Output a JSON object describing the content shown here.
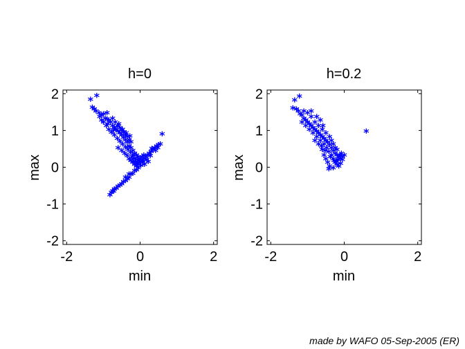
{
  "credit": "made by WAFO 05-Sep-2005 (ER)",
  "marker_color": "#0000ff",
  "chart_data": [
    {
      "type": "scatter",
      "title": "h=0",
      "xlabel": "min",
      "ylabel": "max",
      "xlim": [
        -2.1,
        2.1
      ],
      "ylim": [
        -2.1,
        2.1
      ],
      "xticks": [
        -2,
        0,
        2
      ],
      "yticks": [
        -2,
        -1,
        0,
        1,
        2
      ],
      "marker": "*",
      "points": [
        [
          -1.35,
          1.82
        ],
        [
          -1.18,
          1.92
        ],
        [
          -1.3,
          1.6
        ],
        [
          -1.25,
          1.55
        ],
        [
          -1.2,
          1.5
        ],
        [
          -1.12,
          1.45
        ],
        [
          -1.05,
          1.38
        ],
        [
          -1.0,
          1.42
        ],
        [
          -0.95,
          1.3
        ],
        [
          -0.9,
          1.28
        ],
        [
          -0.85,
          1.25
        ],
        [
          -0.8,
          1.2
        ],
        [
          -0.75,
          1.1
        ],
        [
          -0.7,
          1.05
        ],
        [
          -0.65,
          1.0
        ],
        [
          -0.6,
          0.95
        ],
        [
          -0.55,
          0.9
        ],
        [
          -0.5,
          0.85
        ],
        [
          -0.45,
          0.78
        ],
        [
          -0.4,
          0.72
        ],
        [
          -0.35,
          0.65
        ],
        [
          -0.3,
          0.55
        ],
        [
          -0.25,
          0.5
        ],
        [
          -0.2,
          0.42
        ],
        [
          -0.15,
          0.35
        ],
        [
          -0.1,
          0.3
        ],
        [
          -1.1,
          1.35
        ],
        [
          -1.0,
          1.2
        ],
        [
          -0.92,
          1.1
        ],
        [
          -0.85,
          1.0
        ],
        [
          -0.78,
          0.92
        ],
        [
          -0.7,
          0.85
        ],
        [
          -0.62,
          0.75
        ],
        [
          -0.55,
          0.68
        ],
        [
          -0.48,
          0.6
        ],
        [
          -0.4,
          0.52
        ],
        [
          -0.33,
          0.45
        ],
        [
          -0.26,
          0.38
        ],
        [
          -0.2,
          0.3
        ],
        [
          -0.14,
          0.22
        ],
        [
          -0.08,
          0.18
        ],
        [
          -0.62,
          1.1
        ],
        [
          -0.55,
          1.05
        ],
        [
          -0.5,
          0.98
        ],
        [
          -0.45,
          0.92
        ],
        [
          -0.4,
          0.85
        ],
        [
          -0.35,
          0.8
        ],
        [
          -0.3,
          0.72
        ],
        [
          -0.25,
          0.66
        ],
        [
          -0.6,
          0.5
        ],
        [
          -0.5,
          0.42
        ],
        [
          -0.42,
          0.35
        ],
        [
          -0.35,
          0.28
        ],
        [
          -0.3,
          0.2
        ],
        [
          -0.25,
          0.15
        ],
        [
          -0.2,
          0.1
        ],
        [
          -0.15,
          0.05
        ],
        [
          -0.1,
          0.0
        ],
        [
          -0.05,
          0.05
        ],
        [
          0.0,
          0.1
        ],
        [
          0.05,
          0.15
        ],
        [
          0.1,
          0.2
        ],
        [
          0.15,
          0.25
        ],
        [
          0.2,
          0.3
        ],
        [
          0.25,
          0.35
        ],
        [
          0.3,
          0.4
        ],
        [
          0.35,
          0.45
        ],
        [
          0.4,
          0.5
        ],
        [
          0.45,
          0.55
        ],
        [
          0.5,
          0.58
        ],
        [
          0.55,
          0.6
        ],
        [
          0.6,
          0.88
        ],
        [
          0.0,
          0.2
        ],
        [
          0.05,
          0.25
        ],
        [
          0.1,
          0.3
        ],
        [
          -0.05,
          0.25
        ],
        [
          -0.02,
          0.15
        ],
        [
          0.08,
          0.1
        ],
        [
          0.18,
          0.18
        ],
        [
          0.28,
          0.28
        ],
        [
          -0.1,
          -0.1
        ],
        [
          -0.2,
          -0.2
        ],
        [
          -0.3,
          -0.3
        ],
        [
          -0.4,
          -0.4
        ],
        [
          -0.5,
          -0.48
        ],
        [
          -0.6,
          -0.55
        ],
        [
          -0.7,
          -0.62
        ],
        [
          -0.78,
          -0.72
        ],
        [
          -0.75,
          -0.68
        ],
        [
          -0.82,
          -0.78
        ],
        [
          -0.05,
          -0.05
        ],
        [
          -0.15,
          -0.12
        ],
        [
          -0.25,
          -0.22
        ],
        [
          -0.35,
          -0.35
        ],
        [
          -0.45,
          -0.42
        ],
        [
          -0.55,
          -0.52
        ],
        [
          -0.65,
          -0.6
        ],
        [
          -0.72,
          -0.68
        ],
        [
          -0.4,
          -0.3
        ],
        [
          -0.3,
          -0.22
        ],
        [
          -0.9,
          1.45
        ],
        [
          -0.75,
          1.3
        ],
        [
          -0.68,
          1.2
        ],
        [
          -0.58,
          1.15
        ],
        [
          -0.48,
          1.0
        ],
        [
          -0.38,
          0.9
        ],
        [
          -0.28,
          0.82
        ],
        [
          -1.05,
          1.25
        ],
        [
          -0.88,
          1.15
        ],
        [
          -0.72,
          0.98
        ],
        [
          0.32,
          0.48
        ],
        [
          0.42,
          0.42
        ],
        [
          0.48,
          0.5
        ],
        [
          0.12,
          0.05
        ],
        [
          0.22,
          0.12
        ],
        [
          -0.08,
          0.08
        ],
        [
          0.02,
          0.02
        ],
        [
          -0.12,
          0.12
        ],
        [
          -0.18,
          0.2
        ],
        [
          -0.22,
          0.25
        ]
      ]
    },
    {
      "type": "scatter",
      "title": "h=0.2",
      "xlabel": "min",
      "ylabel": "max",
      "xlim": [
        -2.1,
        2.1
      ],
      "ylim": [
        -2.1,
        2.1
      ],
      "xticks": [
        -2,
        0,
        2
      ],
      "yticks": [
        -2,
        -1,
        0,
        1,
        2
      ],
      "marker": "*",
      "points": [
        [
          -1.35,
          1.8
        ],
        [
          -1.22,
          1.9
        ],
        [
          -1.4,
          1.58
        ],
        [
          -1.3,
          1.55
        ],
        [
          -1.25,
          1.5
        ],
        [
          -1.2,
          1.42
        ],
        [
          -1.15,
          1.38
        ],
        [
          -1.1,
          1.3
        ],
        [
          -1.05,
          1.25
        ],
        [
          -1.0,
          1.2
        ],
        [
          -0.95,
          1.15
        ],
        [
          -0.9,
          1.1
        ],
        [
          -0.85,
          1.05
        ],
        [
          -0.8,
          1.0
        ],
        [
          -0.75,
          0.95
        ],
        [
          -0.7,
          0.9
        ],
        [
          -0.65,
          0.85
        ],
        [
          -0.6,
          0.8
        ],
        [
          -0.55,
          0.75
        ],
        [
          -0.5,
          0.7
        ],
        [
          -0.45,
          0.65
        ],
        [
          -0.4,
          0.58
        ],
        [
          -0.35,
          0.5
        ],
        [
          -0.3,
          0.42
        ],
        [
          -0.25,
          0.35
        ],
        [
          -0.2,
          0.3
        ],
        [
          -0.15,
          0.25
        ],
        [
          -0.1,
          0.2
        ],
        [
          -0.05,
          0.18
        ],
        [
          0.0,
          0.3
        ],
        [
          -1.1,
          1.5
        ],
        [
          -1.0,
          1.45
        ],
        [
          -0.9,
          1.35
        ],
        [
          -0.8,
          1.2
        ],
        [
          -0.7,
          1.1
        ],
        [
          -0.6,
          1.0
        ],
        [
          -0.5,
          0.9
        ],
        [
          -0.4,
          0.8
        ],
        [
          -0.35,
          0.7
        ],
        [
          -0.3,
          0.6
        ],
        [
          -1.15,
          1.2
        ],
        [
          -1.05,
          1.1
        ],
        [
          -0.95,
          1.0
        ],
        [
          -0.85,
          0.9
        ],
        [
          -0.75,
          0.8
        ],
        [
          -0.65,
          0.7
        ],
        [
          -0.55,
          0.6
        ],
        [
          -0.48,
          0.5
        ],
        [
          -0.42,
          0.4
        ],
        [
          -0.35,
          0.3
        ],
        [
          -0.3,
          0.2
        ],
        [
          -0.25,
          0.1
        ],
        [
          -0.2,
          0.05
        ],
        [
          -0.15,
          0.0
        ],
        [
          -0.45,
          0.1
        ],
        [
          -0.5,
          0.2
        ],
        [
          -0.55,
          0.3
        ],
        [
          -0.4,
          0.0
        ],
        [
          -0.42,
          -0.08
        ],
        [
          -0.3,
          -0.05
        ],
        [
          -0.2,
          0.12
        ],
        [
          -0.1,
          0.08
        ],
        [
          -0.12,
          0.3
        ],
        [
          -0.08,
          0.35
        ],
        [
          -0.25,
          0.5
        ],
        [
          -0.2,
          0.45
        ],
        [
          -0.9,
          1.5
        ],
        [
          -0.75,
          1.35
        ],
        [
          -0.65,
          1.25
        ],
        [
          -0.58,
          1.1
        ],
        [
          0.6,
          0.95
        ],
        [
          -0.6,
          0.45
        ],
        [
          -0.7,
          0.6
        ],
        [
          -0.8,
          0.7
        ],
        [
          -0.62,
          0.55
        ],
        [
          -0.52,
          0.42
        ],
        [
          -0.38,
          0.25
        ],
        [
          -0.28,
          0.15
        ],
        [
          -0.18,
          0.18
        ],
        [
          -0.05,
          0.25
        ]
      ]
    }
  ]
}
